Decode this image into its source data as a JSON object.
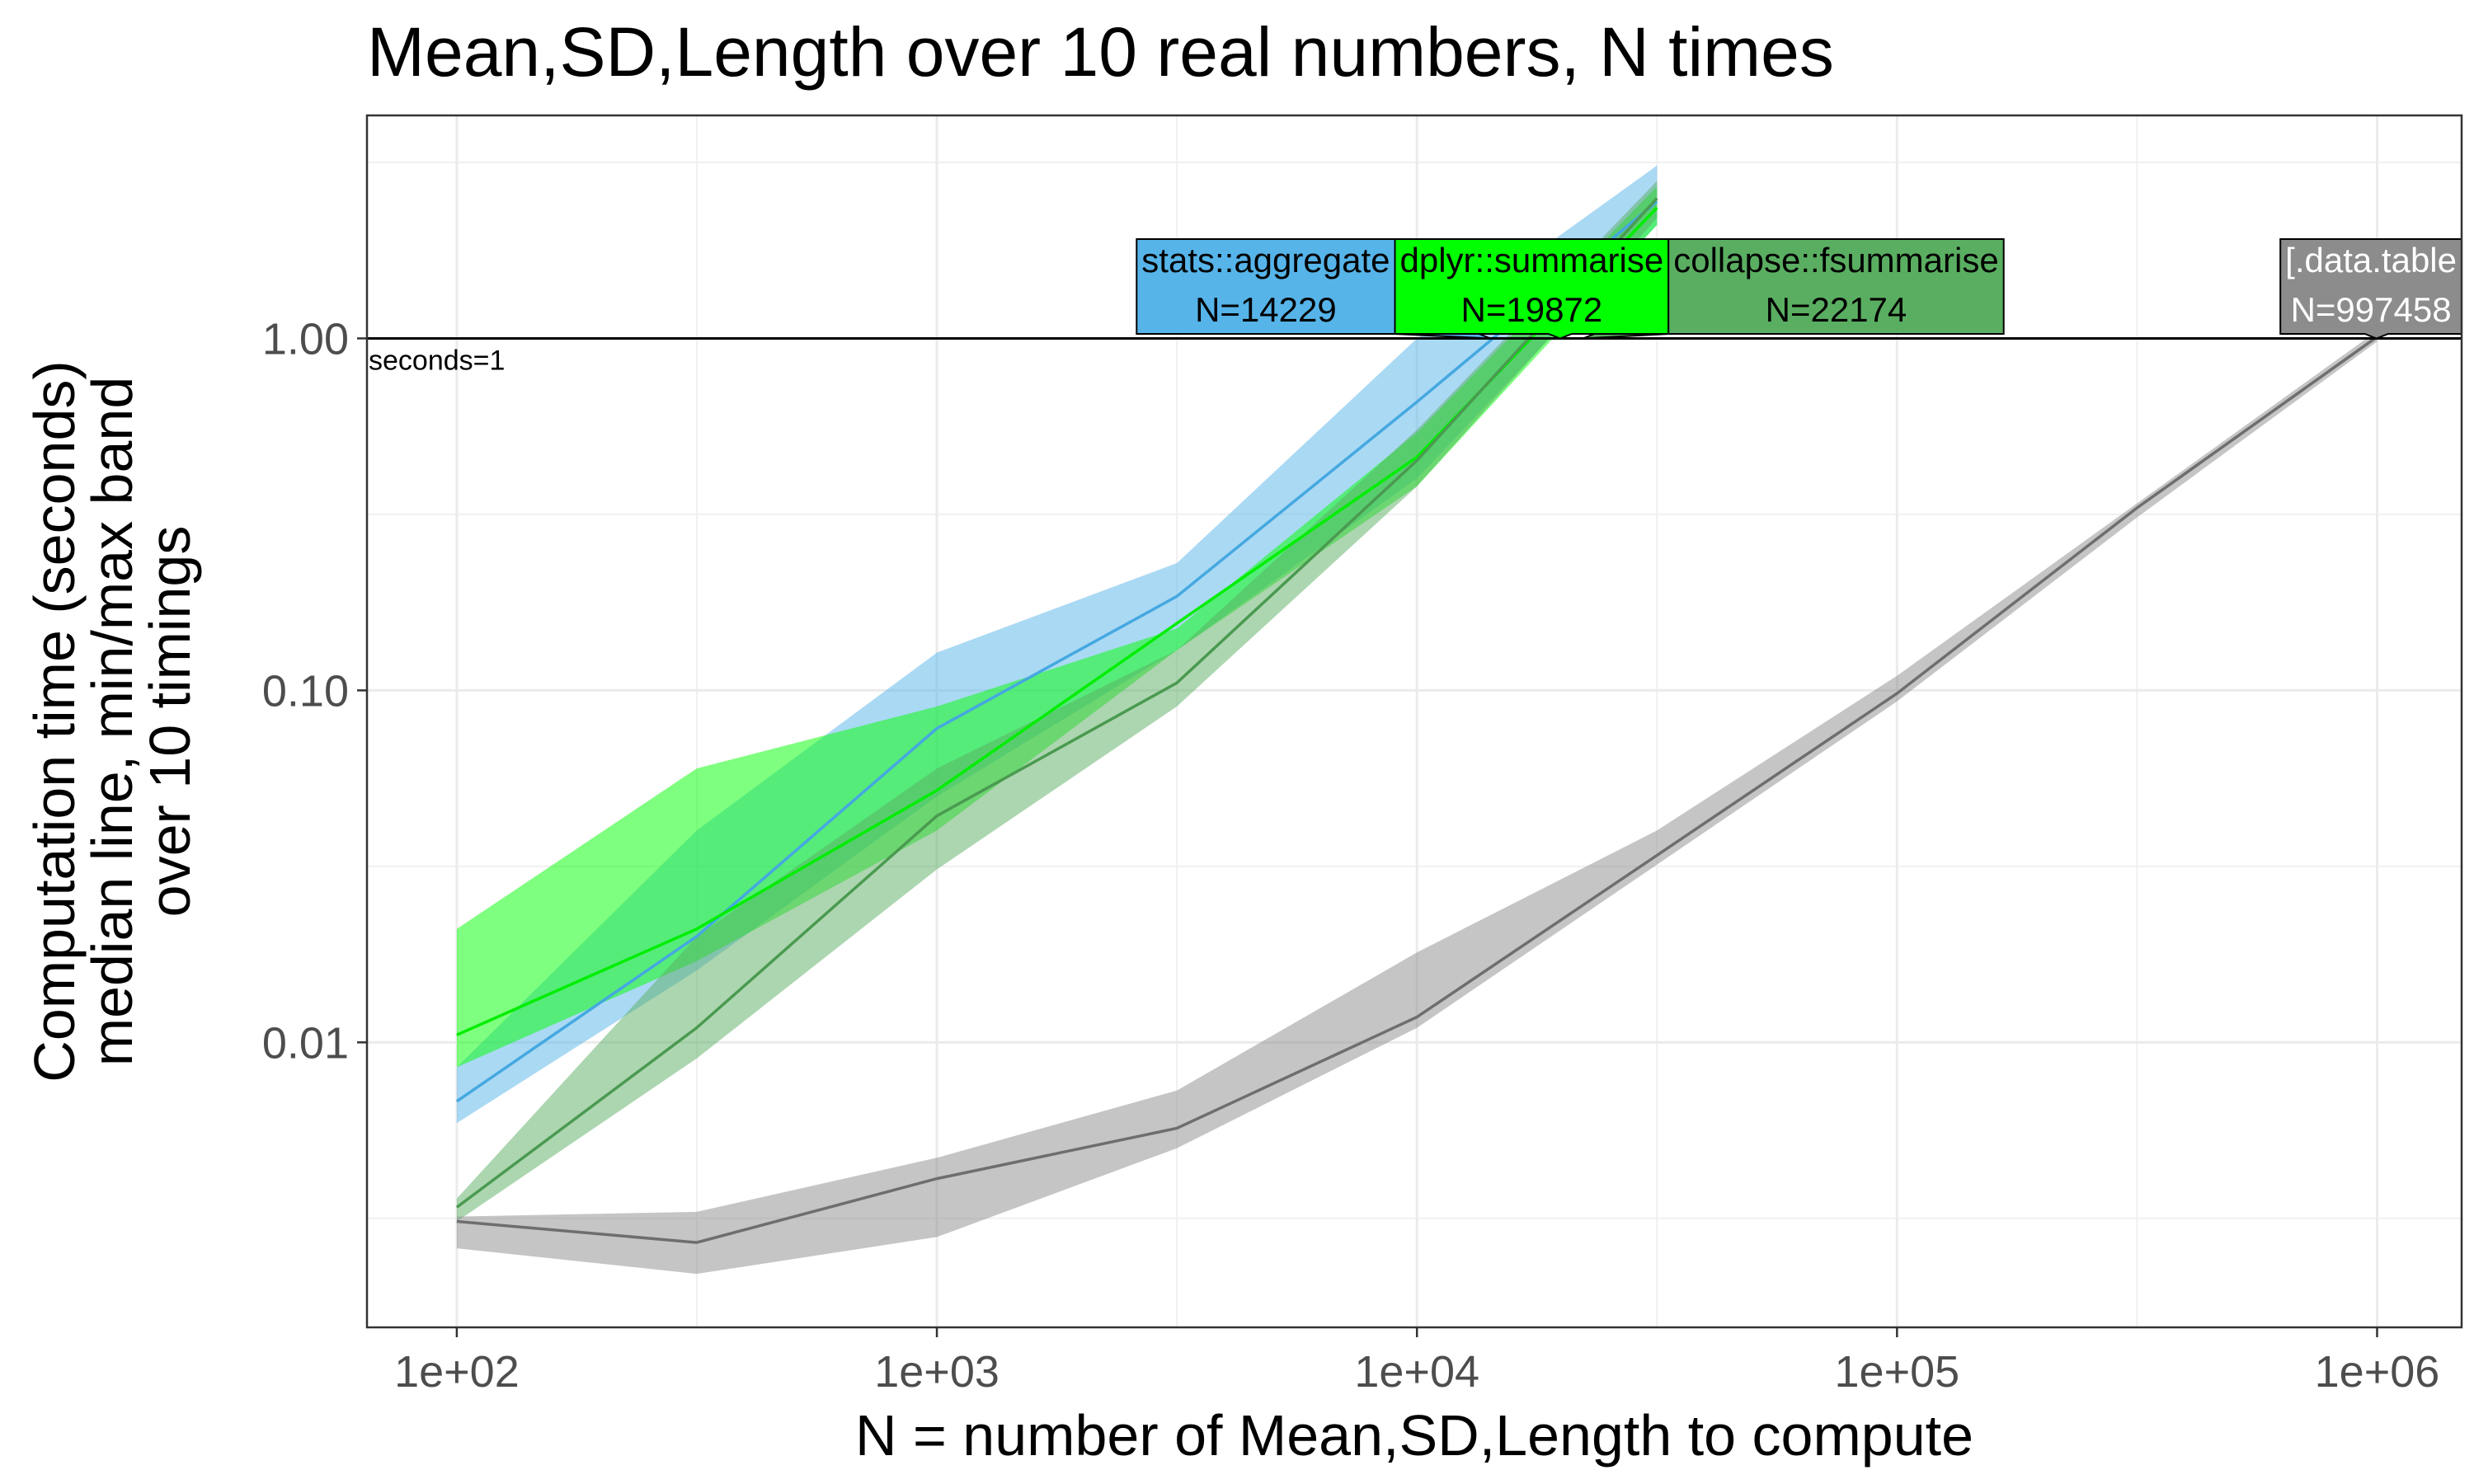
{
  "chart_data": {
    "type": "line",
    "title": "Mean,SD,Length over 10 real numbers, N times",
    "xlabel": "N = number of Mean,SD,Length to compute",
    "ylabel_lines": [
      "Computation time (seconds)",
      "median line, min/max band",
      "over 10 timings"
    ],
    "x_scale": "log10",
    "y_scale": "log10",
    "xlim": [
      65,
      1500000
    ],
    "ylim": [
      0.00155,
      4.3
    ],
    "x_ticks": [
      100,
      1000,
      10000,
      100000,
      1000000
    ],
    "x_tick_labels": [
      "1e+02",
      "1e+03",
      "1e+04",
      "1e+05",
      "1e+06"
    ],
    "y_ticks": [
      0.01,
      0.1,
      1
    ],
    "y_tick_labels": [
      "0.01",
      "0.10",
      "1.00"
    ],
    "grid": true,
    "legend": "none",
    "reference_line": {
      "y": 1,
      "label": "seconds=1"
    },
    "series": [
      {
        "name": "stats::aggregate",
        "color": "#56B4E9",
        "line_color": "#45A8E0",
        "x": [
          100,
          316,
          1000,
          3162,
          10000,
          31623
        ],
        "median": [
          0.0068,
          0.02,
          0.078,
          0.185,
          0.66,
          2.45
        ],
        "min": [
          0.0059,
          0.016,
          0.05,
          0.13,
          0.4,
          2.1
        ],
        "max": [
          0.0085,
          0.04,
          0.128,
          0.23,
          1.0,
          3.1
        ],
        "label_line1": "stats::aggregate",
        "label_line2": "N=14229",
        "label_x": 14229,
        "label_text_color": "#000000"
      },
      {
        "name": "dplyr::summarise",
        "color": "#00FF00",
        "line_color": "#00EE00",
        "x": [
          100,
          316,
          1000,
          3162,
          10000,
          31623
        ],
        "median": [
          0.0105,
          0.021,
          0.052,
          0.155,
          0.46,
          2.35
        ],
        "min": [
          0.0085,
          0.017,
          0.04,
          0.13,
          0.38,
          2.1
        ],
        "max": [
          0.021,
          0.06,
          0.09,
          0.15,
          0.54,
          2.7
        ],
        "label_line1": "dplyr::summarise",
        "label_line2": "N=19872",
        "label_x": 19872,
        "label_text_color": "#000000"
      },
      {
        "name": "collapse::fsummarise",
        "color": "#5AAE61",
        "line_color": "#4A9A50",
        "x": [
          100,
          316,
          1000,
          3162,
          10000,
          31623
        ],
        "median": [
          0.0034,
          0.011,
          0.044,
          0.105,
          0.45,
          2.5
        ],
        "min": [
          0.0031,
          0.009,
          0.031,
          0.09,
          0.38,
          2.2
        ],
        "max": [
          0.0036,
          0.02,
          0.06,
          0.13,
          0.55,
          2.8
        ],
        "label_line1": "collapse::fsummarise",
        "label_line2": "N=22174",
        "label_x": 22174,
        "label_text_color": "#000000"
      },
      {
        "name": "[.data.table",
        "color": "#8C8C8C",
        "line_color": "#6E6E6E",
        "x": [
          100,
          316,
          1000,
          3162,
          10000,
          31623,
          100000,
          316228,
          1000000
        ],
        "median": [
          0.0031,
          0.0027,
          0.0041,
          0.0057,
          0.0118,
          0.034,
          0.098,
          0.33,
          1.01
        ],
        "min": [
          0.0026,
          0.0022,
          0.0028,
          0.005,
          0.011,
          0.032,
          0.093,
          0.31,
          0.98
        ],
        "max": [
          0.0032,
          0.0033,
          0.0047,
          0.0073,
          0.018,
          0.04,
          0.11,
          0.34,
          1.05
        ],
        "label_line1": "[.data.table",
        "label_line2": "N=997458",
        "label_x": 997458,
        "label_text_color": "#FFFFFF"
      }
    ]
  }
}
